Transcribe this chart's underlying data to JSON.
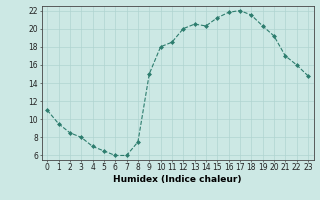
{
  "x": [
    0,
    1,
    2,
    3,
    4,
    5,
    6,
    7,
    8,
    9,
    10,
    11,
    12,
    13,
    14,
    15,
    16,
    17,
    18,
    19,
    20,
    21,
    22,
    23
  ],
  "y": [
    11,
    9.5,
    8.5,
    8,
    7,
    6.5,
    6,
    6,
    7.5,
    15,
    18,
    18.5,
    20,
    20.5,
    20.3,
    21.2,
    21.8,
    22,
    21.5,
    20.3,
    19.2,
    17,
    16,
    14.8
  ],
  "line_color": "#2d7d6e",
  "marker": "D",
  "marker_size": 2,
  "bg_color": "#cce8e4",
  "grid_color": "#b0d4d0",
  "xlabel": "Humidex (Indice chaleur)",
  "ylim": [
    5.5,
    22.5
  ],
  "xlim": [
    -0.5,
    23.5
  ],
  "yticks": [
    6,
    8,
    10,
    12,
    14,
    16,
    18,
    20,
    22
  ],
  "xticks": [
    0,
    1,
    2,
    3,
    4,
    5,
    6,
    7,
    8,
    9,
    10,
    11,
    12,
    13,
    14,
    15,
    16,
    17,
    18,
    19,
    20,
    21,
    22,
    23
  ],
  "xlabel_fontsize": 6.5,
  "tick_fontsize": 5.5
}
